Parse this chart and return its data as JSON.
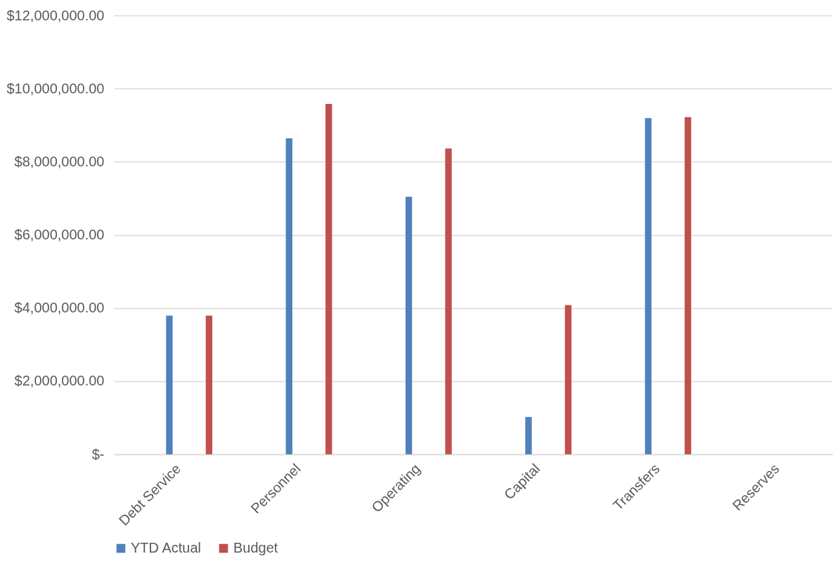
{
  "chart_data": {
    "type": "bar",
    "categories": [
      "Debt Service",
      "Personnel",
      "Operating",
      "Capital",
      "Transfers",
      "Reserves"
    ],
    "series": [
      {
        "name": "YTD Actual",
        "color": "#4f81bd",
        "values": [
          3790000,
          8640000,
          7040000,
          1020000,
          9190000,
          0
        ]
      },
      {
        "name": "Budget",
        "color": "#c0504d",
        "values": [
          3790000,
          9580000,
          8360000,
          4080000,
          9220000,
          0
        ]
      }
    ],
    "ylim": [
      0,
      12000000
    ],
    "yticks": [
      {
        "value": 0,
        "label": "$-"
      },
      {
        "value": 2000000,
        "label": "$2,000,000.00"
      },
      {
        "value": 4000000,
        "label": "$4,000,000.00"
      },
      {
        "value": 6000000,
        "label": "$6,000,000.00"
      },
      {
        "value": 8000000,
        "label": "$8,000,000.00"
      },
      {
        "value": 10000000,
        "label": "$10,000,000.00"
      },
      {
        "value": 12000000,
        "label": "$12,000,000.00"
      }
    ],
    "grid": "y",
    "legend": "bottom"
  }
}
